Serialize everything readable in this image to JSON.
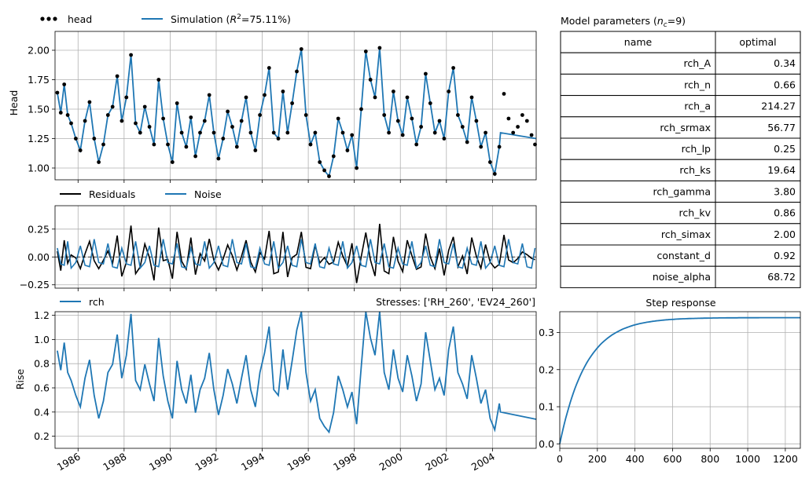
{
  "chart_data": [
    {
      "panel": "head",
      "type": "line",
      "ylabel": "Head",
      "ylim": [
        0.9,
        2.16
      ],
      "yticks": [
        "1.00",
        "1.25",
        "1.50",
        "1.75",
        "2.00"
      ],
      "grid": true,
      "legend": {
        "placement": "above-left",
        "entries": [
          "head",
          "Simulation"
        ]
      },
      "legend_head": "head",
      "legend_sim_prefix": "Simulation (",
      "legend_sim_r": "R",
      "legend_sim_sup": "2",
      "legend_sim_suffix": "=75.11%)",
      "series": [
        {
          "name": "head",
          "style": "markers",
          "color": "#000000",
          "x": [
            1985.1,
            1985.25,
            1985.4,
            1985.55,
            1985.7,
            1985.9,
            1986.1,
            1986.3,
            1986.5,
            1986.7,
            1986.9,
            1987.1,
            1987.3,
            1987.5,
            1987.7,
            1987.9,
            1988.1,
            1988.3,
            1988.5,
            1988.7,
            1988.9,
            1989.1,
            1989.3,
            1989.5,
            1989.7,
            1989.9,
            1990.1,
            1990.3,
            1990.5,
            1990.7,
            1990.9,
            1991.1,
            1991.3,
            1991.5,
            1991.7,
            1991.9,
            1992.1,
            1992.3,
            1992.5,
            1992.7,
            1992.9,
            1993.1,
            1993.3,
            1993.5,
            1993.7,
            1993.9,
            1994.1,
            1994.3,
            1994.5,
            1994.7,
            1994.9,
            1995.1,
            1995.3,
            1995.5,
            1995.7,
            1995.9,
            1996.1,
            1996.3,
            1996.5,
            1996.7,
            1996.9,
            1997.1,
            1997.3,
            1997.5,
            1997.7,
            1997.9,
            1998.1,
            1998.3,
            1998.5,
            1998.7,
            1998.9,
            1999.1,
            1999.3,
            1999.5,
            1999.7,
            1999.9,
            2000.1,
            2000.3,
            2000.5,
            2000.7,
            2000.9,
            2001.1,
            2001.3,
            2001.5,
            2001.7,
            2001.9,
            2002.1,
            2002.3,
            2002.5,
            2002.7,
            2002.9,
            2003.1,
            2003.3,
            2003.5,
            2003.7,
            2003.9,
            2004.1,
            2004.3,
            2004.5,
            2004.7,
            2004.9,
            2005.1,
            2005.3,
            2005.5,
            2005.7,
            2005.85
          ],
          "y": [
            1.64,
            1.47,
            1.71,
            1.45,
            1.38,
            1.25,
            1.15,
            1.4,
            1.56,
            1.25,
            1.05,
            1.2,
            1.45,
            1.52,
            1.78,
            1.4,
            1.6,
            1.96,
            1.38,
            1.3,
            1.52,
            1.35,
            1.2,
            1.75,
            1.42,
            1.2,
            1.05,
            1.55,
            1.3,
            1.18,
            1.43,
            1.1,
            1.3,
            1.4,
            1.62,
            1.3,
            1.08,
            1.25,
            1.48,
            1.35,
            1.18,
            1.4,
            1.6,
            1.3,
            1.15,
            1.45,
            1.62,
            1.85,
            1.3,
            1.25,
            1.65,
            1.3,
            1.55,
            1.82,
            2.01,
            1.45,
            1.2,
            1.3,
            1.05,
            0.98,
            0.93,
            1.1,
            1.42,
            1.3,
            1.15,
            1.28,
            1.0,
            1.5,
            1.99,
            1.75,
            1.6,
            2.02,
            1.45,
            1.3,
            1.65,
            1.4,
            1.28,
            1.6,
            1.42,
            1.2,
            1.35,
            1.8,
            1.55,
            1.3,
            1.4,
            1.25,
            1.65,
            1.85,
            1.45,
            1.35,
            1.22,
            1.6,
            1.4,
            1.18,
            1.3,
            1.05,
            0.95,
            1.18,
            1.63,
            1.42,
            1.3,
            1.35,
            1.45,
            1.4,
            1.28,
            1.2
          ]
        },
        {
          "name": "Simulation",
          "style": "line",
          "color": "#1f77b4"
        }
      ]
    },
    {
      "panel": "residuals",
      "type": "line",
      "ylim": [
        -0.28,
        0.46
      ],
      "yticks": [
        "−0.25",
        "0.00",
        "0.25"
      ],
      "grid": true,
      "legend": {
        "placement": "above-left",
        "entries": [
          "Residuals",
          "Noise"
        ]
      },
      "series": [
        {
          "name": "Residuals",
          "color": "#000000"
        },
        {
          "name": "Noise",
          "color": "#1f77b4"
        }
      ]
    },
    {
      "panel": "contribution",
      "type": "line",
      "ylabel": "Rise",
      "ylim": [
        0.1,
        1.23
      ],
      "yticks": [
        "0.2",
        "0.4",
        "0.6",
        "0.8",
        "1.0",
        "1.2"
      ],
      "grid": true,
      "legend": {
        "placement": "above-left",
        "entries": [
          "rch"
        ]
      },
      "stresses_label": "Stresses: ['RH_260', 'EV24_260']",
      "xlim": [
        1985.0,
        2005.9
      ],
      "xticks": [
        "1986",
        "1988",
        "1990",
        "1992",
        "1994",
        "1996",
        "1998",
        "2000",
        "2002",
        "2004"
      ],
      "xtick_values": [
        1986,
        1988,
        1990,
        1992,
        1994,
        1996,
        1998,
        2000,
        2002,
        2004
      ],
      "series": [
        {
          "name": "rch",
          "color": "#1f77b4"
        }
      ]
    },
    {
      "panel": "step_response",
      "type": "line",
      "title": "Step response",
      "xlim": [
        0,
        1280
      ],
      "ylim": [
        -0.012,
        0.356
      ],
      "xticks": [
        "0",
        "200",
        "400",
        "600",
        "800",
        "1000",
        "1200"
      ],
      "xtick_values": [
        0,
        200,
        400,
        600,
        800,
        1000,
        1200
      ],
      "yticks": [
        "0.0",
        "0.1",
        "0.2",
        "0.3"
      ],
      "ytick_values": [
        0.0,
        0.1,
        0.2,
        0.3
      ],
      "grid": true,
      "series": [
        {
          "name": "step",
          "color": "#1f77b4",
          "asymptote": 0.34
        }
      ]
    },
    {
      "panel": "parameters",
      "type": "table",
      "title_prefix": "Model parameters (",
      "title_n": "n",
      "title_sub": "c",
      "title_suffix": "=9)",
      "columns": [
        "name",
        "optimal"
      ],
      "rows": [
        [
          "rch_A",
          "0.34"
        ],
        [
          "rch_n",
          "0.66"
        ],
        [
          "rch_a",
          "214.27"
        ],
        [
          "rch_srmax",
          "56.77"
        ],
        [
          "rch_lp",
          "0.25"
        ],
        [
          "rch_ks",
          "19.64"
        ],
        [
          "rch_gamma",
          "3.80"
        ],
        [
          "rch_kv",
          "0.86"
        ],
        [
          "rch_simax",
          "2.00"
        ],
        [
          "constant_d",
          "0.92"
        ],
        [
          "noise_alpha",
          "68.72"
        ]
      ]
    }
  ]
}
